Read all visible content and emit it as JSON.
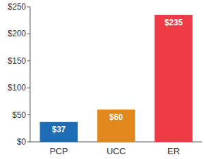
{
  "chart_data": {
    "type": "bar",
    "categories": [
      "PCP",
      "UCC",
      "ER"
    ],
    "values": [
      37,
      60,
      235
    ],
    "value_labels": [
      "$37",
      "$60",
      "$235"
    ],
    "colors": [
      "#1f6db4",
      "#e0881c",
      "#ee3b46"
    ],
    "ylim": [
      0,
      250
    ],
    "yticks": [
      {
        "value": 0,
        "label": "$0"
      },
      {
        "value": 50,
        "label": "$50"
      },
      {
        "value": 100,
        "label": "$100"
      },
      {
        "value": 150,
        "label": "$150"
      },
      {
        "value": 200,
        "label": "$200"
      },
      {
        "value": 250,
        "label": "$250"
      }
    ],
    "grid": false,
    "data_labels": true
  }
}
